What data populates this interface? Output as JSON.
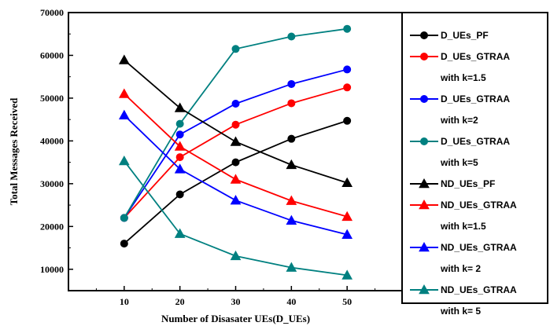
{
  "chart_data": {
    "type": "line",
    "title": "",
    "xlabel": "Number of Disasater UEs(D_UEs)",
    "ylabel": "Total Messages Received",
    "x": [
      10,
      20,
      30,
      40,
      50
    ],
    "xticks": [
      "10",
      "20",
      "30",
      "40",
      "50"
    ],
    "xlim": [
      0,
      60
    ],
    "ylim": [
      5000,
      70000
    ],
    "yticks": [
      "10000",
      "20000",
      "30000",
      "40000",
      "50000",
      "60000",
      "70000"
    ],
    "grid": false,
    "legend_position": "right",
    "series": [
      {
        "name": "D_UEs_PF",
        "name2": "",
        "color": "#000000",
        "marker": "circle",
        "values": [
          16000,
          27500,
          35000,
          40500,
          44700
        ]
      },
      {
        "name": "D_UEs_GTRAA",
        "name2": "with k=1.5",
        "color": "#ff0000",
        "marker": "circle",
        "values": [
          22000,
          36200,
          43800,
          48800,
          52500
        ]
      },
      {
        "name": "D_UEs_GTRAA",
        "name2": "with k=2",
        "color": "#0000ff",
        "marker": "circle",
        "values": [
          22000,
          41500,
          48700,
          53300,
          56700
        ]
      },
      {
        "name": "D_UEs_GTRAA",
        "name2": "with k=5",
        "color": "#008080",
        "marker": "circle",
        "values": [
          22000,
          44000,
          61500,
          64400,
          66200
        ]
      },
      {
        "name": "ND_UEs_PF",
        "name2": "",
        "color": "#000000",
        "marker": "triangle",
        "values": [
          58900,
          47700,
          39800,
          34400,
          30200
        ]
      },
      {
        "name": "ND_UEs_GTRAA",
        "name2": "with k=1.5",
        "color": "#ff0000",
        "marker": "triangle",
        "values": [
          51000,
          38700,
          31000,
          26000,
          22300
        ]
      },
      {
        "name": "ND_UEs_GTRAA",
        "name2": "with k= 2",
        "color": "#0000ff",
        "marker": "triangle",
        "values": [
          46000,
          33400,
          26100,
          21400,
          18100
        ]
      },
      {
        "name": "ND_UEs_GTRAA",
        "name2": "with k= 5",
        "color": "#008080",
        "marker": "triangle",
        "values": [
          35300,
          18300,
          13100,
          10400,
          8600
        ]
      }
    ]
  }
}
